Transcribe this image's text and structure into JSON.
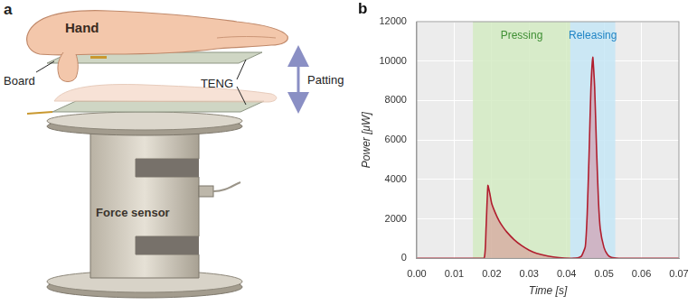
{
  "diagram": {
    "panel_label": "a",
    "labels": {
      "hand": "Hand",
      "board": "Board",
      "teng": "TENG",
      "motion": "Patting",
      "sensor": "Force sensor"
    }
  },
  "chart_data": {
    "panel_label": "b",
    "type": "line",
    "x_label": "Time [s]",
    "y_label": "Power [μW]",
    "x": [
      0,
      0.005,
      0.01,
      0.015,
      0.018,
      0.0185,
      0.019,
      0.0195,
      0.02,
      0.021,
      0.022,
      0.023,
      0.024,
      0.026,
      0.028,
      0.03,
      0.032,
      0.035,
      0.038,
      0.041,
      0.043,
      0.044,
      0.045,
      0.0455,
      0.046,
      0.0465,
      0.047,
      0.0475,
      0.048,
      0.0485,
      0.049,
      0.05,
      0.051,
      0.052,
      0.054,
      0.06,
      0.065,
      0.07
    ],
    "values": [
      0,
      0,
      0,
      0,
      20,
      1500,
      3700,
      3300,
      2800,
      2300,
      1900,
      1600,
      1350,
      950,
      650,
      420,
      260,
      120,
      40,
      10,
      30,
      120,
      600,
      2200,
      5200,
      8600,
      10200,
      8700,
      5600,
      3000,
      1500,
      550,
      180,
      50,
      10,
      0,
      0,
      0
    ],
    "color": "#b01e2e",
    "xlim": [
      0,
      0.07
    ],
    "xticks": [
      {
        "value": 0,
        "label": "0.00"
      },
      {
        "value": 0.01,
        "label": "0.01"
      },
      {
        "value": 0.02,
        "label": "0.02"
      },
      {
        "value": 0.03,
        "label": "0.03"
      },
      {
        "value": 0.04,
        "label": "0.04"
      },
      {
        "value": 0.05,
        "label": "0.05"
      },
      {
        "value": 0.06,
        "label": "0.06"
      },
      {
        "value": 0.07,
        "label": "0.07"
      }
    ],
    "ylim": [
      0,
      12000
    ],
    "yticks": [
      0,
      2000,
      4000,
      6000,
      8000,
      10000,
      12000
    ],
    "grid": true,
    "annotations": [
      {
        "text": "Pressing",
        "x": [
          0.015,
          0.041
        ],
        "color": "#d3ebc3"
      },
      {
        "text": "Releasing",
        "x": [
          0.041,
          0.053
        ],
        "color": "#c6e6f6"
      }
    ]
  }
}
